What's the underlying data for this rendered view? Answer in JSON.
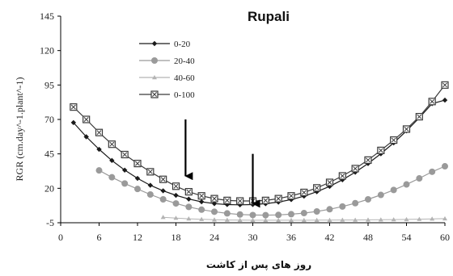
{
  "chart_data": {
    "type": "line",
    "title": "Rupali",
    "xlabel": "روز های پس از کاشت",
    "ylabel": "RGR (cm.day^-1.plant^-1)",
    "xlim": [
      0,
      60
    ],
    "ylim": [
      -5,
      145
    ],
    "xticks": [
      0,
      6,
      12,
      18,
      24,
      30,
      36,
      42,
      48,
      54,
      60
    ],
    "yticks": [
      -5,
      20,
      45,
      70,
      95,
      120,
      145
    ],
    "legend_position": "top-left",
    "grid": false,
    "series": [
      {
        "name": "0-20",
        "color": "#1a1a1a",
        "marker": "diamond",
        "x": [
          2,
          4,
          6,
          8,
          10,
          12,
          14,
          16,
          18,
          20,
          22,
          24,
          26,
          28,
          30,
          32,
          34,
          36,
          38,
          40,
          42,
          44,
          46,
          48,
          50,
          52,
          54,
          56,
          58,
          60
        ],
        "values": [
          67.7,
          57.4,
          48.3,
          40.2,
          33.2,
          27.2,
          22.2,
          18.2,
          14.9,
          12.2,
          10.2,
          8.9,
          8.2,
          8.0,
          8.2,
          8.8,
          10.0,
          11.8,
          14.3,
          17.5,
          21.4,
          26.2,
          31.7,
          38.0,
          45.1,
          53.0,
          61.7,
          71.2,
          81.5,
          84.0
        ]
      },
      {
        "name": "20-40",
        "color": "#9a9a9a",
        "marker": "circle",
        "x": [
          6,
          8,
          10,
          12,
          14,
          16,
          18,
          20,
          22,
          24,
          26,
          28,
          30,
          32,
          34,
          36,
          38,
          40,
          42,
          44,
          46,
          48,
          50,
          52,
          54,
          56,
          58,
          60
        ],
        "values": [
          33.0,
          28.0,
          23.5,
          19.5,
          15.5,
          12.0,
          9.0,
          6.5,
          4.5,
          3.0,
          1.8,
          1.0,
          0.6,
          0.5,
          0.7,
          1.2,
          2.0,
          3.2,
          4.8,
          6.8,
          9.2,
          12.0,
          15.2,
          18.8,
          22.8,
          27.2,
          32.0,
          36.0
        ]
      },
      {
        "name": "40-60",
        "color": "#b4b4b4",
        "marker": "triangle",
        "x": [
          16,
          18,
          20,
          22,
          24,
          26,
          28,
          30,
          32,
          34,
          36,
          38,
          40,
          42,
          44,
          46,
          48,
          50,
          52,
          54,
          56,
          58,
          60
        ],
        "values": [
          -1.0,
          -1.6,
          -2.1,
          -2.5,
          -2.8,
          -3.0,
          -3.1,
          -3.2,
          -3.2,
          -3.2,
          -3.2,
          -3.2,
          -3.1,
          -3.1,
          -3.0,
          -3.0,
          -2.9,
          -2.8,
          -2.7,
          -2.6,
          -2.4,
          -2.2,
          -2.0
        ]
      },
      {
        "name": "0-100",
        "color": "#3a3a3a",
        "marker": "boxed-x",
        "x": [
          2,
          4,
          6,
          8,
          10,
          12,
          14,
          16,
          18,
          20,
          22,
          24,
          26,
          28,
          30,
          32,
          34,
          36,
          38,
          40,
          42,
          44,
          46,
          48,
          50,
          52,
          54,
          56,
          58,
          60
        ],
        "values": [
          79.0,
          70.0,
          60.5,
          52.0,
          44.5,
          38.0,
          32.0,
          26.5,
          21.5,
          17.5,
          14.5,
          12.5,
          11.2,
          10.8,
          10.8,
          11.2,
          12.5,
          14.5,
          17.0,
          20.3,
          24.3,
          29.0,
          34.3,
          40.5,
          47.5,
          55.0,
          63.0,
          72.0,
          83.0,
          95.0
        ]
      }
    ],
    "annotations": [
      {
        "type": "arrow",
        "direction": "down",
        "x": 19.5,
        "from_y": 70,
        "to_y": 23
      },
      {
        "type": "arrow",
        "direction": "down",
        "x": 30,
        "from_y": 45,
        "to_y": 3
      }
    ]
  }
}
